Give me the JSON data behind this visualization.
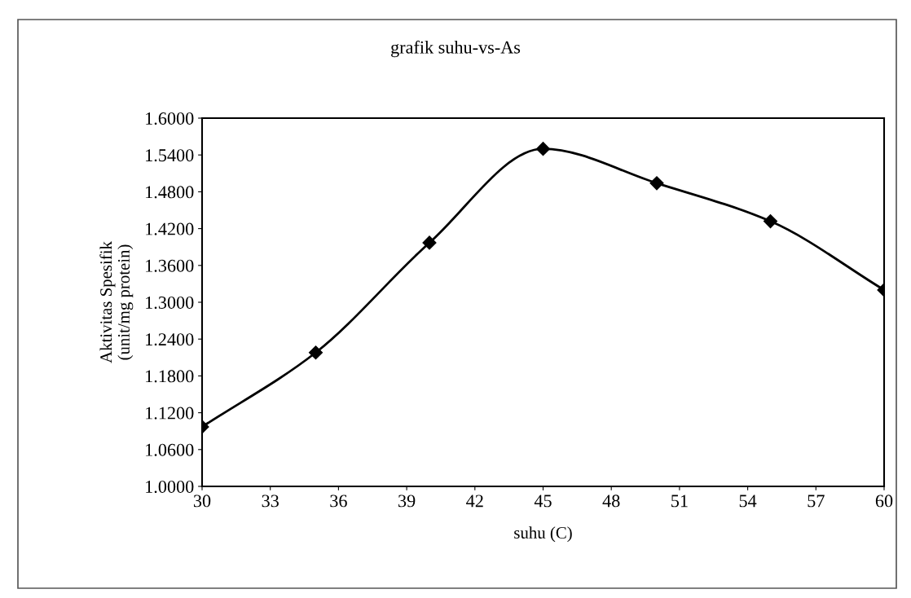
{
  "chart_data": {
    "type": "line",
    "title": "grafik suhu-vs-As",
    "xlabel": "suhu (C)",
    "ylabel": "Aktivitas Spesifik\n(unit/mg protein)",
    "x": [
      30,
      35,
      40,
      45,
      50,
      55,
      60
    ],
    "series": [
      {
        "color": "#000000",
        "values": [
          1.097,
          1.218,
          1.397,
          1.55,
          1.494,
          1.432,
          1.32
        ]
      }
    ],
    "xlim": [
      30,
      60
    ],
    "xticks": [
      30,
      33,
      36,
      39,
      42,
      45,
      48,
      51,
      54,
      57,
      60
    ],
    "ylim": [
      1.0,
      1.6
    ],
    "yticks": [
      {
        "value": 1.0,
        "label": "1.0000"
      },
      {
        "value": 1.06,
        "label": "1.0600"
      },
      {
        "value": 1.12,
        "label": "1.1200"
      },
      {
        "value": 1.18,
        "label": "1.1800"
      },
      {
        "value": 1.24,
        "label": "1.2400"
      },
      {
        "value": 1.3,
        "label": "1.3000"
      },
      {
        "value": 1.36,
        "label": "1.3600"
      },
      {
        "value": 1.42,
        "label": "1.4200"
      },
      {
        "value": 1.48,
        "label": "1.4800"
      },
      {
        "value": 1.54,
        "label": "1.5400"
      },
      {
        "value": 1.6,
        "label": "1.6000"
      }
    ],
    "marker": "diamond",
    "line_style": "solid",
    "grid": false,
    "legend": false
  }
}
